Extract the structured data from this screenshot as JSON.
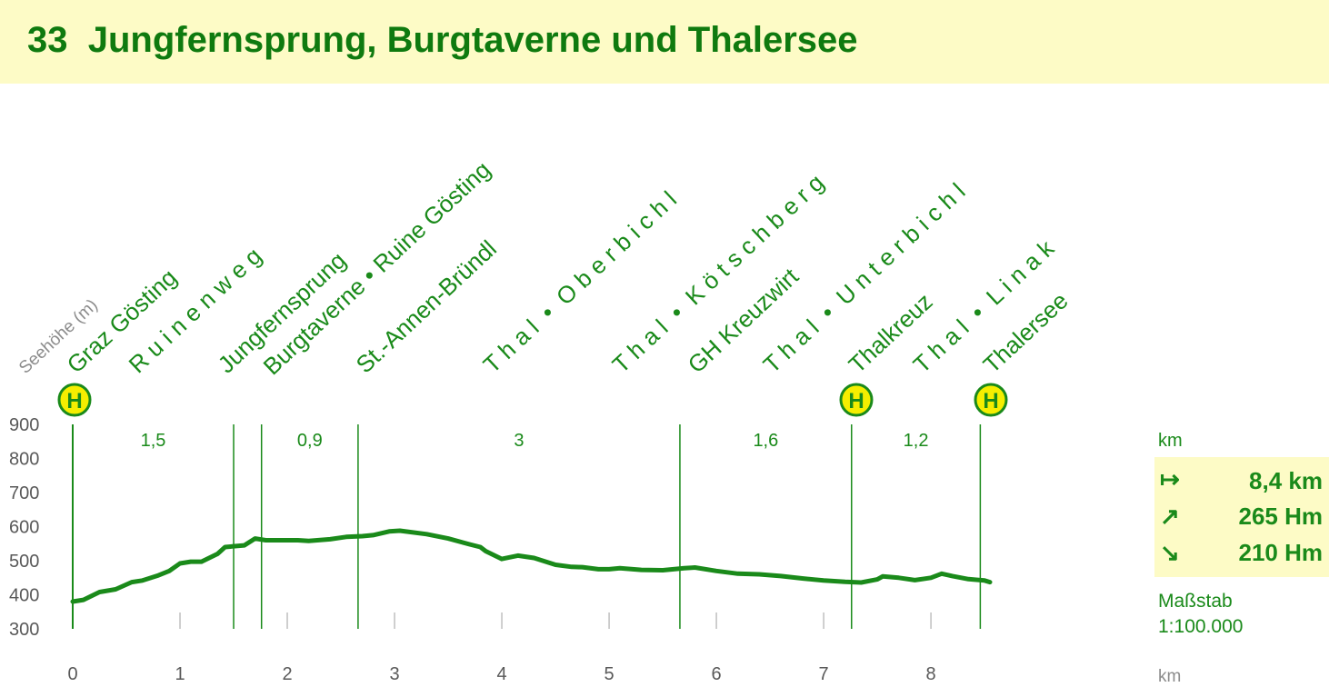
{
  "chart_data": {
    "type": "line",
    "title": "33  Jungfernsprung, Burgtaverne und Thalersee",
    "y_label": "Seehöhe (m)",
    "x_unit": "km",
    "color": "#1a8a1a",
    "xlim": [
      0,
      8.55
    ],
    "ylim": [
      300,
      900
    ],
    "xticks": [
      0,
      1,
      2,
      3,
      4,
      5,
      6,
      7,
      8
    ],
    "yticks": [
      300,
      400,
      500,
      600,
      700,
      800,
      900
    ],
    "x": [
      0,
      0.1,
      0.25,
      0.4,
      0.55,
      0.65,
      0.8,
      0.9,
      1.0,
      1.1,
      1.2,
      1.35,
      1.42,
      1.6,
      1.7,
      1.8,
      1.9,
      2.1,
      2.2,
      2.4,
      2.55,
      2.7,
      2.8,
      2.95,
      3.05,
      3.3,
      3.5,
      3.7,
      3.8,
      3.85,
      4.0,
      4.15,
      4.3,
      4.5,
      4.65,
      4.75,
      4.9,
      5.0,
      5.1,
      5.3,
      5.5,
      5.7,
      5.8,
      6.0,
      6.2,
      6.4,
      6.6,
      6.8,
      7.0,
      7.2,
      7.35,
      7.5,
      7.55,
      7.7,
      7.85,
      8.0,
      8.1,
      8.2,
      8.35,
      8.5,
      8.55
    ],
    "values": [
      380,
      385,
      408,
      416,
      437,
      442,
      457,
      470,
      492,
      497,
      497,
      520,
      540,
      545,
      565,
      560,
      560,
      560,
      558,
      563,
      570,
      572,
      575,
      586,
      588,
      578,
      565,
      548,
      540,
      528,
      505,
      515,
      508,
      488,
      482,
      481,
      475,
      475,
      478,
      473,
      472,
      478,
      480,
      470,
      462,
      460,
      455,
      448,
      442,
      438,
      436,
      445,
      454,
      450,
      443,
      450,
      462,
      455,
      446,
      442,
      437
    ],
    "segments": {
      "values": [
        1.5,
        0.26,
        0.9,
        3,
        1.6,
        1.2
      ],
      "labels": [
        "1,5",
        null,
        "0,9",
        "3",
        "1,6",
        "1,2"
      ]
    },
    "stops": [
      "Graz Gösting",
      "R u i n e n w e g",
      "Jungfernsprung",
      "Burgtaverne • Ruine Gösting",
      "St.-Annen-Bründl",
      "T h a l  •  O b e r b i c h l",
      "T h a l  •  K ö t s c h b e r g",
      "GH Kreuzwirt",
      "T h a l  •  U n t e r b i c h l",
      "Thalkreuz",
      "T h a l  •  L i n a k",
      "Thalersee"
    ],
    "summary": {
      "unit_label": "km",
      "distance": "8,4 km",
      "ascent": "265 Hm",
      "descent": "210 Hm",
      "scale_label": "Maßstab",
      "scale": "1:100.000"
    }
  }
}
